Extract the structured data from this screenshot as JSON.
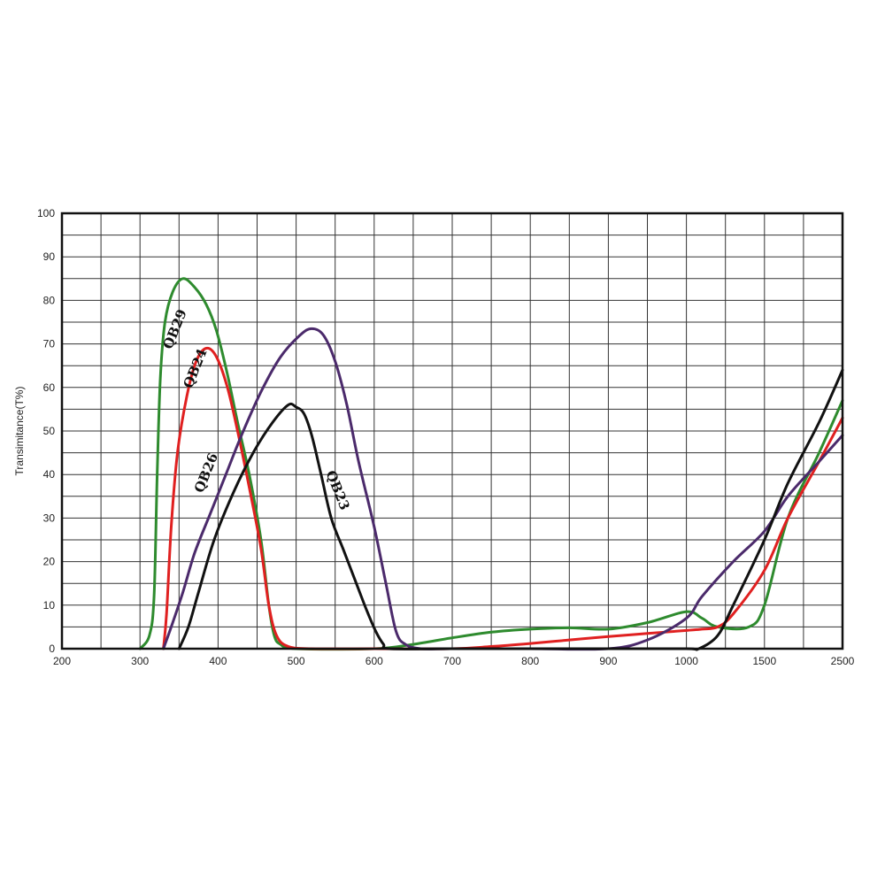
{
  "chart_data": {
    "type": "line",
    "title": "",
    "xlabel": "",
    "ylabel": "Transimitance(T%)",
    "x_ticks": [
      200,
      300,
      400,
      500,
      600,
      700,
      800,
      900,
      1000,
      1500,
      2500
    ],
    "y_ticks": [
      0,
      10,
      20,
      30,
      40,
      50,
      60,
      70,
      80,
      90,
      100
    ],
    "ylim": [
      0,
      100
    ],
    "grid": true,
    "legend": "none (curves labeled inline)",
    "series": [
      {
        "name": "QB29",
        "color": "#2e8b2e",
        "points": [
          [
            300,
            0
          ],
          [
            312,
            3
          ],
          [
            318,
            12
          ],
          [
            322,
            40
          ],
          [
            326,
            62
          ],
          [
            332,
            75
          ],
          [
            342,
            82
          ],
          [
            355,
            85
          ],
          [
            370,
            83
          ],
          [
            385,
            79
          ],
          [
            398,
            73
          ],
          [
            412,
            63
          ],
          [
            425,
            52
          ],
          [
            440,
            40
          ],
          [
            455,
            25
          ],
          [
            465,
            10
          ],
          [
            472,
            3
          ],
          [
            480,
            1
          ],
          [
            500,
            0
          ],
          [
            600,
            0
          ],
          [
            650,
            1
          ],
          [
            700,
            2.5
          ],
          [
            750,
            3.8
          ],
          [
            800,
            4.5
          ],
          [
            850,
            4.8
          ],
          [
            900,
            4.5
          ],
          [
            950,
            6
          ],
          [
            1000,
            8.5
          ],
          [
            1100,
            7
          ],
          [
            1200,
            5
          ],
          [
            1400,
            5
          ],
          [
            1500,
            10
          ],
          [
            1800,
            30
          ],
          [
            2200,
            45
          ],
          [
            2500,
            57
          ]
        ]
      },
      {
        "name": "QB24",
        "color": "#e02020",
        "points": [
          [
            330,
            0
          ],
          [
            334,
            8
          ],
          [
            340,
            28
          ],
          [
            348,
            45
          ],
          [
            360,
            58
          ],
          [
            372,
            66
          ],
          [
            385,
            69
          ],
          [
            398,
            67
          ],
          [
            412,
            60
          ],
          [
            425,
            50
          ],
          [
            440,
            37
          ],
          [
            455,
            23
          ],
          [
            465,
            10
          ],
          [
            475,
            3
          ],
          [
            490,
            0.5
          ],
          [
            520,
            0
          ],
          [
            600,
            0
          ],
          [
            700,
            0
          ],
          [
            750,
            0.5
          ],
          [
            800,
            1.2
          ],
          [
            850,
            2
          ],
          [
            900,
            2.8
          ],
          [
            950,
            3.5
          ],
          [
            1000,
            4.2
          ],
          [
            1100,
            4.5
          ],
          [
            1200,
            5
          ],
          [
            1300,
            8
          ],
          [
            1500,
            18
          ],
          [
            1800,
            30
          ],
          [
            2200,
            43
          ],
          [
            2500,
            53
          ]
        ]
      },
      {
        "name": "QB26",
        "color": "#4b2a6b",
        "points": [
          [
            330,
            0
          ],
          [
            340,
            5
          ],
          [
            355,
            13
          ],
          [
            370,
            22
          ],
          [
            390,
            31
          ],
          [
            410,
            40
          ],
          [
            430,
            49
          ],
          [
            455,
            59
          ],
          [
            480,
            67
          ],
          [
            505,
            72
          ],
          [
            520,
            73.5
          ],
          [
            535,
            72
          ],
          [
            550,
            66
          ],
          [
            565,
            56
          ],
          [
            580,
            43
          ],
          [
            600,
            28
          ],
          [
            615,
            15
          ],
          [
            628,
            4
          ],
          [
            640,
            1
          ],
          [
            660,
            0
          ],
          [
            700,
            0
          ],
          [
            800,
            0
          ],
          [
            900,
            0
          ],
          [
            950,
            2
          ],
          [
            1000,
            7
          ],
          [
            1100,
            12
          ],
          [
            1300,
            20
          ],
          [
            1500,
            27
          ],
          [
            1800,
            35
          ],
          [
            2200,
            43
          ],
          [
            2500,
            49
          ]
        ]
      },
      {
        "name": "QB23",
        "color": "#111111",
        "points": [
          [
            350,
            0
          ],
          [
            362,
            5
          ],
          [
            375,
            13
          ],
          [
            395,
            25
          ],
          [
            420,
            36
          ],
          [
            445,
            45
          ],
          [
            470,
            52
          ],
          [
            490,
            56
          ],
          [
            500,
            55.5
          ],
          [
            510,
            54
          ],
          [
            520,
            49
          ],
          [
            532,
            40
          ],
          [
            545,
            30
          ],
          [
            560,
            23
          ],
          [
            575,
            16
          ],
          [
            590,
            9
          ],
          [
            602,
            4
          ],
          [
            612,
            1
          ],
          [
            620,
            0
          ],
          [
            700,
            0
          ],
          [
            800,
            0
          ],
          [
            900,
            0
          ],
          [
            1000,
            0
          ],
          [
            1080,
            0
          ],
          [
            1200,
            3
          ],
          [
            1300,
            10
          ],
          [
            1500,
            25
          ],
          [
            1800,
            38
          ],
          [
            2200,
            52
          ],
          [
            2500,
            64
          ]
        ]
      }
    ],
    "labels": [
      {
        "text": "QB29",
        "x": 350,
        "y": 73,
        "angle": -68
      },
      {
        "text": "QB24",
        "x": 376,
        "y": 64,
        "angle": -68
      },
      {
        "text": "QB26",
        "x": 390,
        "y": 40,
        "angle": -68
      },
      {
        "text": "QB23",
        "x": 548,
        "y": 36,
        "angle": 68
      }
    ]
  }
}
